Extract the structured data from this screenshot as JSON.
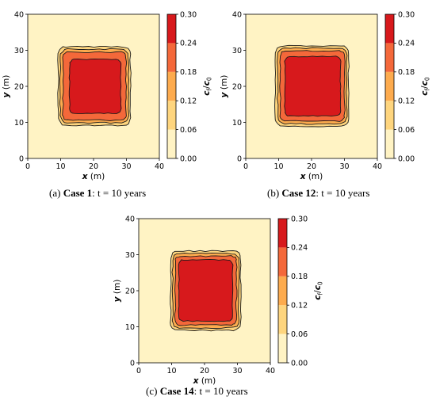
{
  "chart_data": [
    {
      "type": "heatmap",
      "panel_label": "(a)",
      "case_label": "Case 1",
      "caption_rest": ": t = 10 years",
      "xlabel": "x (m)",
      "ylabel": "y (m)",
      "xlim": [
        0,
        40
      ],
      "ylim": [
        0,
        40
      ],
      "x_ticks": [
        "0",
        "10",
        "20",
        "30",
        "40"
      ],
      "y_ticks": [
        "0",
        "10",
        "20",
        "30",
        "40"
      ],
      "colorbar_label": "c_f/c_0",
      "colorbar_ticks": [
        "0.00",
        "0.06",
        "0.12",
        "0.18",
        "0.24",
        "0.30"
      ],
      "levels": [
        0.0,
        0.06,
        0.12,
        0.18,
        0.24,
        0.3
      ],
      "colors": [
        "#fff3c4",
        "#fed57e",
        "#fdab4e",
        "#f4683a",
        "#d7191c"
      ],
      "contours": [
        {
          "level": 0.06,
          "x": [
            9.3,
            31.2
          ],
          "y": [
            9.2,
            31.0
          ]
        },
        {
          "level": 0.12,
          "x": [
            9.9,
            30.6
          ],
          "y": [
            9.9,
            30.3
          ]
        },
        {
          "level": 0.18,
          "x": [
            10.7,
            29.9
          ],
          "y": [
            10.6,
            29.5
          ]
        },
        {
          "level": 0.24,
          "x": [
            12.7,
            28.3
          ],
          "y": [
            12.5,
            27.5
          ]
        }
      ]
    },
    {
      "type": "heatmap",
      "panel_label": "(b)",
      "case_label": "Case 12",
      "caption_rest": ": t = 10 years",
      "xlabel": "x (m)",
      "ylabel": "y (m)",
      "xlim": [
        0,
        40
      ],
      "ylim": [
        0,
        40
      ],
      "x_ticks": [
        "0",
        "10",
        "20",
        "30",
        "40"
      ],
      "y_ticks": [
        "0",
        "10",
        "20",
        "30",
        "40"
      ],
      "colorbar_label": "c_f/c_0",
      "colorbar_ticks": [
        "0.00",
        "0.06",
        "0.12",
        "0.18",
        "0.24",
        "0.30"
      ],
      "levels": [
        0.0,
        0.06,
        0.12,
        0.18,
        0.24,
        0.3
      ],
      "colors": [
        "#fff3c4",
        "#fed57e",
        "#fdab4e",
        "#f4683a",
        "#d7191c"
      ],
      "contours": [
        {
          "level": 0.06,
          "x": [
            9.0,
            31.3
          ],
          "y": [
            8.9,
            31.2
          ]
        },
        {
          "level": 0.12,
          "x": [
            9.7,
            30.7
          ],
          "y": [
            9.6,
            30.6
          ]
        },
        {
          "level": 0.18,
          "x": [
            10.5,
            30.0
          ],
          "y": [
            10.4,
            29.8
          ]
        },
        {
          "level": 0.24,
          "x": [
            11.9,
            28.8
          ],
          "y": [
            11.8,
            28.3
          ]
        }
      ]
    },
    {
      "type": "heatmap",
      "panel_label": "(c)",
      "case_label": "Case 14",
      "caption_rest": ": t = 10 years",
      "xlabel": "x (m)",
      "ylabel": "y (m)",
      "xlim": [
        0,
        40
      ],
      "ylim": [
        0,
        40
      ],
      "x_ticks": [
        "0",
        "10",
        "20",
        "30",
        "40"
      ],
      "y_ticks": [
        "0",
        "10",
        "20",
        "30",
        "40"
      ],
      "colorbar_label": "c_f/c_0",
      "colorbar_ticks": [
        "0.00",
        "0.06",
        "0.12",
        "0.18",
        "0.24",
        "0.30"
      ],
      "levels": [
        0.0,
        0.06,
        0.12,
        0.18,
        0.24,
        0.3
      ],
      "colors": [
        "#fff3c4",
        "#fed57e",
        "#fdab4e",
        "#f4683a",
        "#d7191c"
      ],
      "contours": [
        {
          "level": 0.06,
          "x": [
            9.7,
            31.0
          ],
          "y": [
            9.0,
            31.0
          ]
        },
        {
          "level": 0.12,
          "x": [
            10.3,
            30.4
          ],
          "y": [
            9.7,
            30.3
          ]
        },
        {
          "level": 0.18,
          "x": [
            11.1,
            29.7
          ],
          "y": [
            10.5,
            29.6
          ]
        },
        {
          "level": 0.24,
          "x": [
            12.2,
            28.5
          ],
          "y": [
            11.6,
            28.6
          ]
        }
      ]
    }
  ]
}
